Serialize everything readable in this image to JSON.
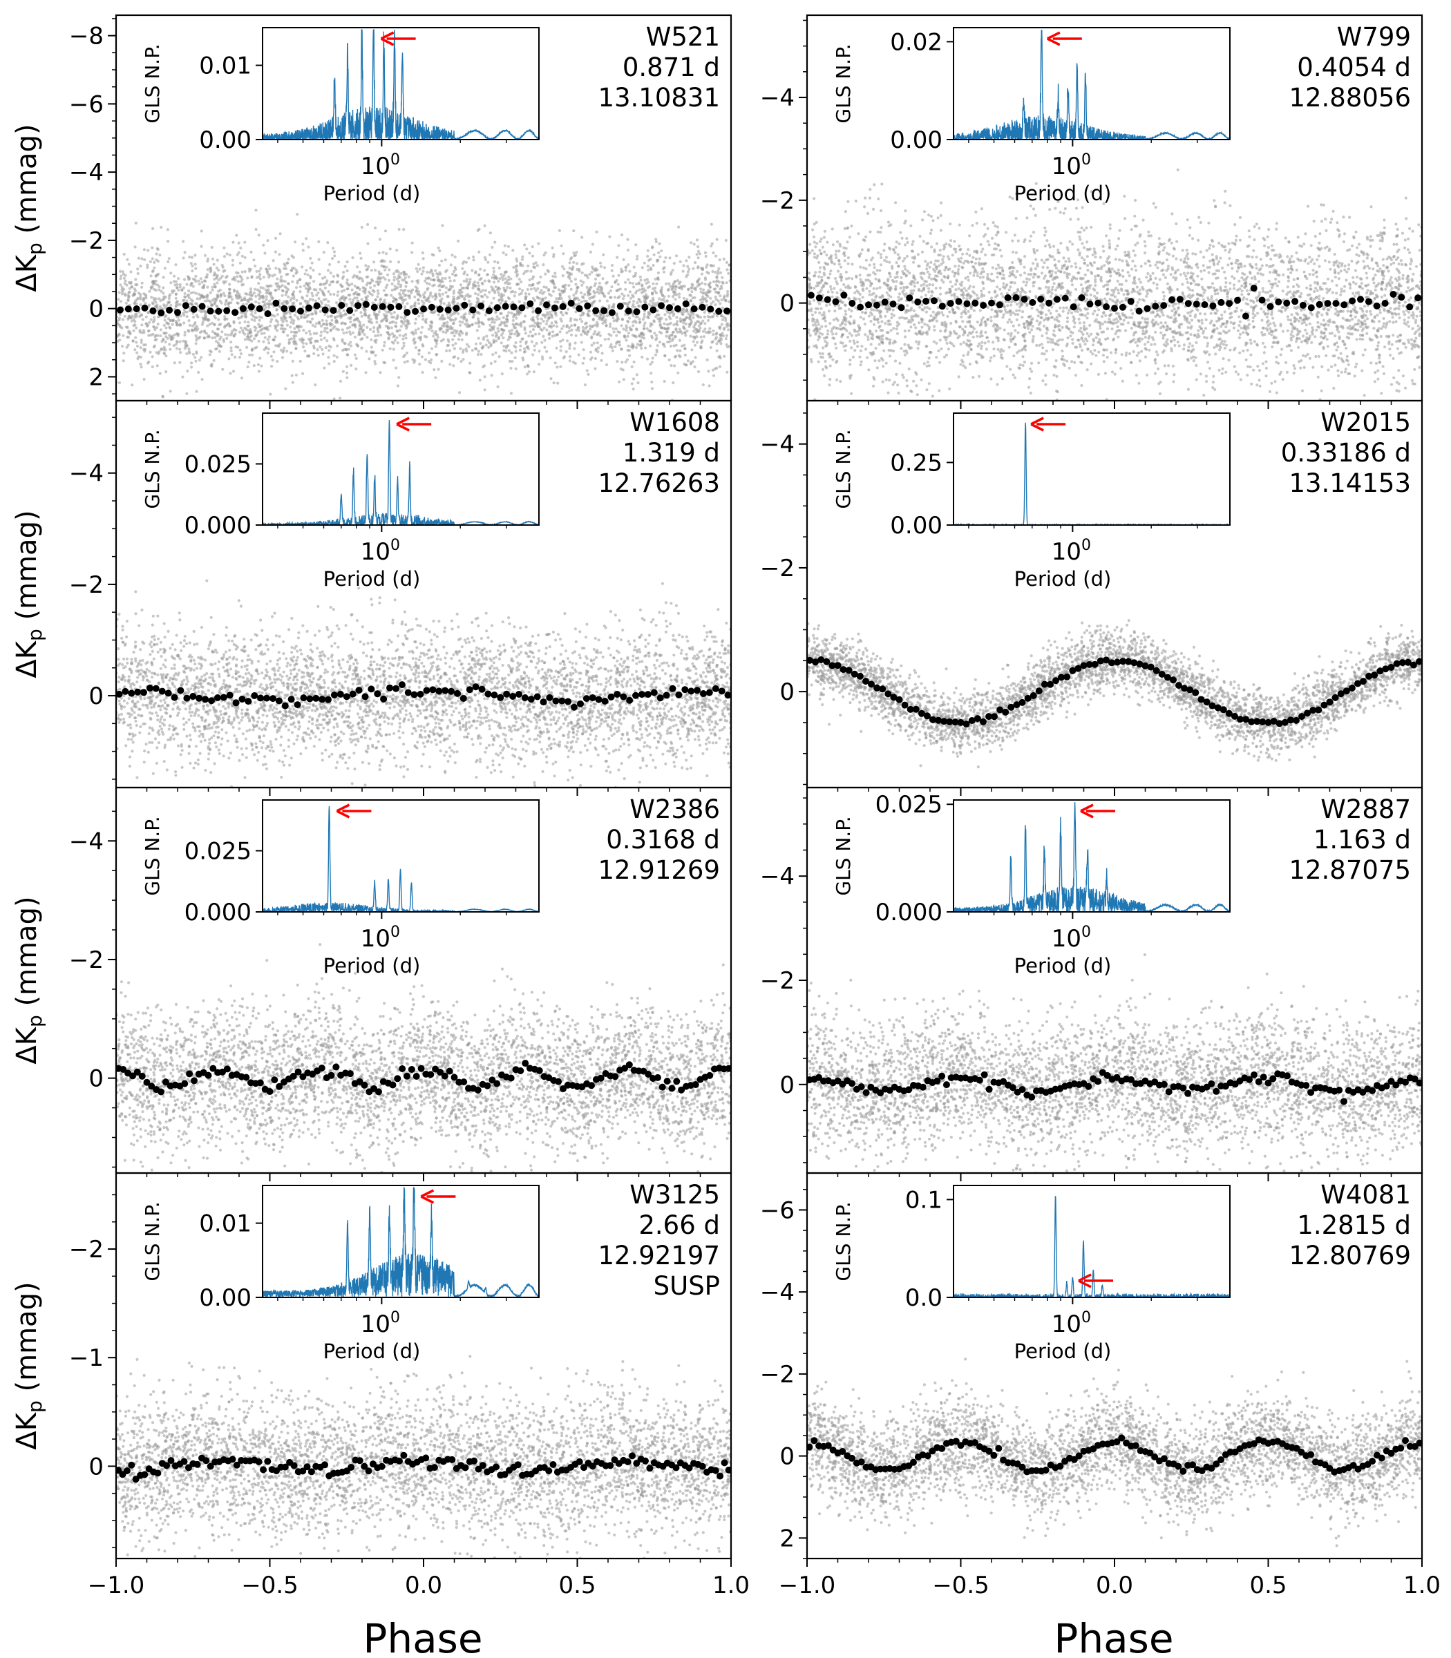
{
  "figure": {
    "xlabel": "Phase",
    "ylabel_prefix": "ΔK",
    "ylabel_sub": "p",
    "ylabel_suffix": " (mmag)",
    "xlim": [
      -1.0,
      1.0
    ],
    "xticks": [
      -1.0,
      -0.5,
      0.0,
      0.5,
      1.0
    ],
    "xtick_labels": [
      "−1.0",
      "−0.5",
      "0.0",
      "0.5",
      "1.0"
    ]
  },
  "inset": {
    "ylabel": "GLS N.P.",
    "xlabel": "Period (d)",
    "xtick_label": "10",
    "xtick_exp": "0",
    "x_log_range": [
      0.35,
      4.0
    ]
  },
  "colors": {
    "periodogram": "#1f77b4",
    "arrow": "#ff0000",
    "scatter": "#999999",
    "binned": "#000000",
    "axes": "#000000"
  },
  "chart_data": [
    {
      "type": "scatter",
      "panel": "W521",
      "info": [
        "W521",
        "0.871 d",
        "13.10831"
      ],
      "ylim": [
        2.7,
        -8.6
      ],
      "yticks": [
        2,
        0,
        -2,
        -4,
        -6,
        -8
      ],
      "ytick_labels": [
        "2",
        "0",
        "−2",
        "−4",
        "−6",
        "−8"
      ],
      "noise_sd": 0.85,
      "signal": {
        "amp": 0.0,
        "harmonic": 1
      },
      "bins": 75,
      "inset": {
        "yticks": [
          0,
          0.01
        ],
        "ytick_labels": [
          "0.00",
          "0.01"
        ],
        "ymax": 0.0145,
        "peak_period": 0.93,
        "arrow_period": 1.02,
        "peaks": [
          [
            0.93,
            0.0142
          ],
          [
            1.12,
            0.0128
          ],
          [
            0.84,
            0.0125
          ],
          [
            1.02,
            0.0118
          ],
          [
            0.74,
            0.0098
          ],
          [
            1.2,
            0.011
          ],
          [
            0.66,
            0.0072
          ]
        ],
        "noise": 0.0045,
        "noise_decay": 1.6,
        "kind": "dense"
      }
    },
    {
      "type": "scatter",
      "panel": "W799",
      "info": [
        "W799",
        "0.4054 d",
        "12.88056"
      ],
      "ylim": [
        1.9,
        -5.6
      ],
      "yticks": [
        0,
        -2,
        -4
      ],
      "ytick_labels": [
        "0",
        "−2",
        "−4"
      ],
      "noise_sd": 0.75,
      "signal": {
        "amp": 0.0,
        "harmonic": 1
      },
      "bins": 75,
      "inset": {
        "yticks": [
          0,
          0.02
        ],
        "ytick_labels": [
          "0.00",
          "0.02"
        ],
        "ymax": 0.022,
        "peak_period": 0.76,
        "arrow_period": 0.82,
        "peaks": [
          [
            0.76,
            0.0212
          ],
          [
            1.04,
            0.0142
          ],
          [
            0.88,
            0.0075
          ],
          [
            1.12,
            0.012
          ],
          [
            0.65,
            0.006
          ],
          [
            0.96,
            0.009
          ]
        ],
        "noise": 0.005,
        "noise_decay": 1.8,
        "kind": "dense"
      }
    },
    {
      "type": "scatter",
      "panel": "W1608",
      "info": [
        "W1608",
        "1.319 d",
        "12.76263"
      ],
      "ylim": [
        1.65,
        -5.3
      ],
      "yticks": [
        0,
        -2,
        -4
      ],
      "ytick_labels": [
        "0",
        "−2",
        "−4"
      ],
      "noise_sd": 0.6,
      "signal": {
        "amp": 0.08,
        "harmonic": 2
      },
      "bins": 100,
      "inset": {
        "yticks": [
          0,
          0.025
        ],
        "ytick_labels": [
          "0.000",
          "0.025"
        ],
        "ymax": 0.044,
        "peak_period": 1.07,
        "arrow_period": 1.17,
        "peaks": [
          [
            1.07,
            0.043
          ],
          [
            0.88,
            0.029
          ],
          [
            1.28,
            0.022
          ],
          [
            0.78,
            0.021
          ],
          [
            0.94,
            0.018
          ],
          [
            1.15,
            0.016
          ],
          [
            0.7,
            0.012
          ]
        ],
        "noise": 0.005,
        "noise_decay": 2.0,
        "kind": "medium"
      }
    },
    {
      "type": "scatter",
      "panel": "W2015",
      "info": [
        "W2015",
        "0.33186 d",
        "13.14153"
      ],
      "ylim": [
        1.55,
        -4.7
      ],
      "yticks": [
        0,
        -2,
        -4
      ],
      "ytick_labels": [
        "0",
        "−2",
        "−4"
      ],
      "noise_sd": 0.25,
      "signal": {
        "amp": 0.5,
        "harmonic": 2
      },
      "bins": 110,
      "inset": {
        "yticks": [
          0,
          0.25
        ],
        "ytick_labels": [
          "0.00",
          "0.25"
        ],
        "ymax": 0.43,
        "peak_period": 0.66,
        "arrow_period": 0.71,
        "peaks": [
          [
            0.66,
            0.41
          ]
        ],
        "noise": 0.003,
        "noise_decay": 1.5,
        "kind": "spike"
      }
    },
    {
      "type": "scatter",
      "panel": "W2386",
      "info": [
        "W2386",
        "0.3168 d",
        "12.91269"
      ],
      "ylim": [
        1.6,
        -4.9
      ],
      "yticks": [
        0,
        -2,
        -4
      ],
      "ytick_labels": [
        "0",
        "−2",
        "−4"
      ],
      "noise_sd": 0.6,
      "signal": {
        "amp": 0.15,
        "harmonic": 6
      },
      "bins": 130,
      "inset": {
        "yticks": [
          0,
          0.025
        ],
        "ytick_labels": [
          "0.000",
          "0.025"
        ],
        "ymax": 0.044,
        "peak_period": 0.63,
        "arrow_period": 0.69,
        "peaks": [
          [
            0.63,
            0.043
          ],
          [
            1.18,
            0.017
          ],
          [
            1.06,
            0.013
          ],
          [
            0.94,
            0.011
          ],
          [
            1.3,
            0.012
          ]
        ],
        "noise": 0.004,
        "noise_decay": 1.5,
        "kind": "medium"
      }
    },
    {
      "type": "scatter",
      "panel": "W2887",
      "info": [
        "W2887",
        "1.163 d",
        "12.87075"
      ],
      "ylim": [
        1.7,
        -5.7
      ],
      "yticks": [
        0,
        -2,
        -4
      ],
      "ytick_labels": [
        "0",
        "−2",
        "−4"
      ],
      "noise_sd": 0.65,
      "signal": {
        "amp": 0.12,
        "harmonic": 4
      },
      "bins": 130,
      "inset": {
        "yticks": [
          0,
          0.025
        ],
        "ytick_labels": [
          "0.000",
          "0.025"
        ],
        "ymax": 0.025,
        "peak_period": 1.02,
        "arrow_period": 1.1,
        "peaks": [
          [
            1.02,
            0.0245
          ],
          [
            0.66,
            0.0185
          ],
          [
            0.9,
            0.0175
          ],
          [
            0.78,
            0.013
          ],
          [
            1.14,
            0.012
          ],
          [
            0.58,
            0.012
          ],
          [
            1.35,
            0.006
          ]
        ],
        "noise": 0.006,
        "noise_decay": 1.2,
        "kind": "dense"
      }
    },
    {
      "type": "scatter",
      "panel": "W3125",
      "info": [
        "W3125",
        "2.66 d",
        "12.92197",
        "SUSP"
      ],
      "ylim": [
        0.85,
        -2.7
      ],
      "yticks": [
        0,
        -1,
        -2
      ],
      "ytick_labels": [
        "0",
        "−1",
        "−2"
      ],
      "noise_sd": 0.32,
      "signal": {
        "amp": 0.05,
        "harmonic": 3
      },
      "bins": 140,
      "inset": {
        "yticks": [
          0,
          0.01
        ],
        "ytick_labels": [
          "0.00",
          "0.01"
        ],
        "ymax": 0.0145,
        "peak_period": 1.33,
        "arrow_period": 1.45,
        "peaks": [
          [
            1.33,
            0.0138
          ],
          [
            1.22,
            0.013
          ],
          [
            1.07,
            0.0095
          ],
          [
            0.9,
            0.009
          ],
          [
            1.55,
            0.0085
          ],
          [
            2.15,
            0.0048
          ],
          [
            2.5,
            0.0038
          ],
          [
            0.74,
            0.0092
          ]
        ],
        "noise": 0.006,
        "noise_decay": 0.8,
        "kind": "dense"
      }
    },
    {
      "type": "scatter",
      "panel": "W4081",
      "info": [
        "W4081",
        "1.2815 d",
        "12.80769"
      ],
      "ylim": [
        2.5,
        -6.9
      ],
      "yticks": [
        2,
        0,
        -2,
        -4,
        -6
      ],
      "ytick_labels": [
        "2",
        "0",
        "−2",
        "−4",
        "−6"
      ],
      "noise_sd": 0.6,
      "signal": {
        "amp": 0.35,
        "harmonic": 4
      },
      "bins": 130,
      "inset": {
        "yticks": [
          0,
          0.1
        ],
        "ytick_labels": [
          "0.0",
          "0.1"
        ],
        "ymax": 0.11,
        "peak_period": 0.86,
        "arrow_period": 1.08,
        "peaks": [
          [
            0.86,
            0.104
          ],
          [
            1.1,
            0.058
          ],
          [
            1.2,
            0.028
          ],
          [
            1.0,
            0.02
          ],
          [
            0.95,
            0.014
          ],
          [
            1.3,
            0.012
          ]
        ],
        "noise": 0.004,
        "noise_decay": 2.0,
        "kind": "spike"
      }
    }
  ]
}
